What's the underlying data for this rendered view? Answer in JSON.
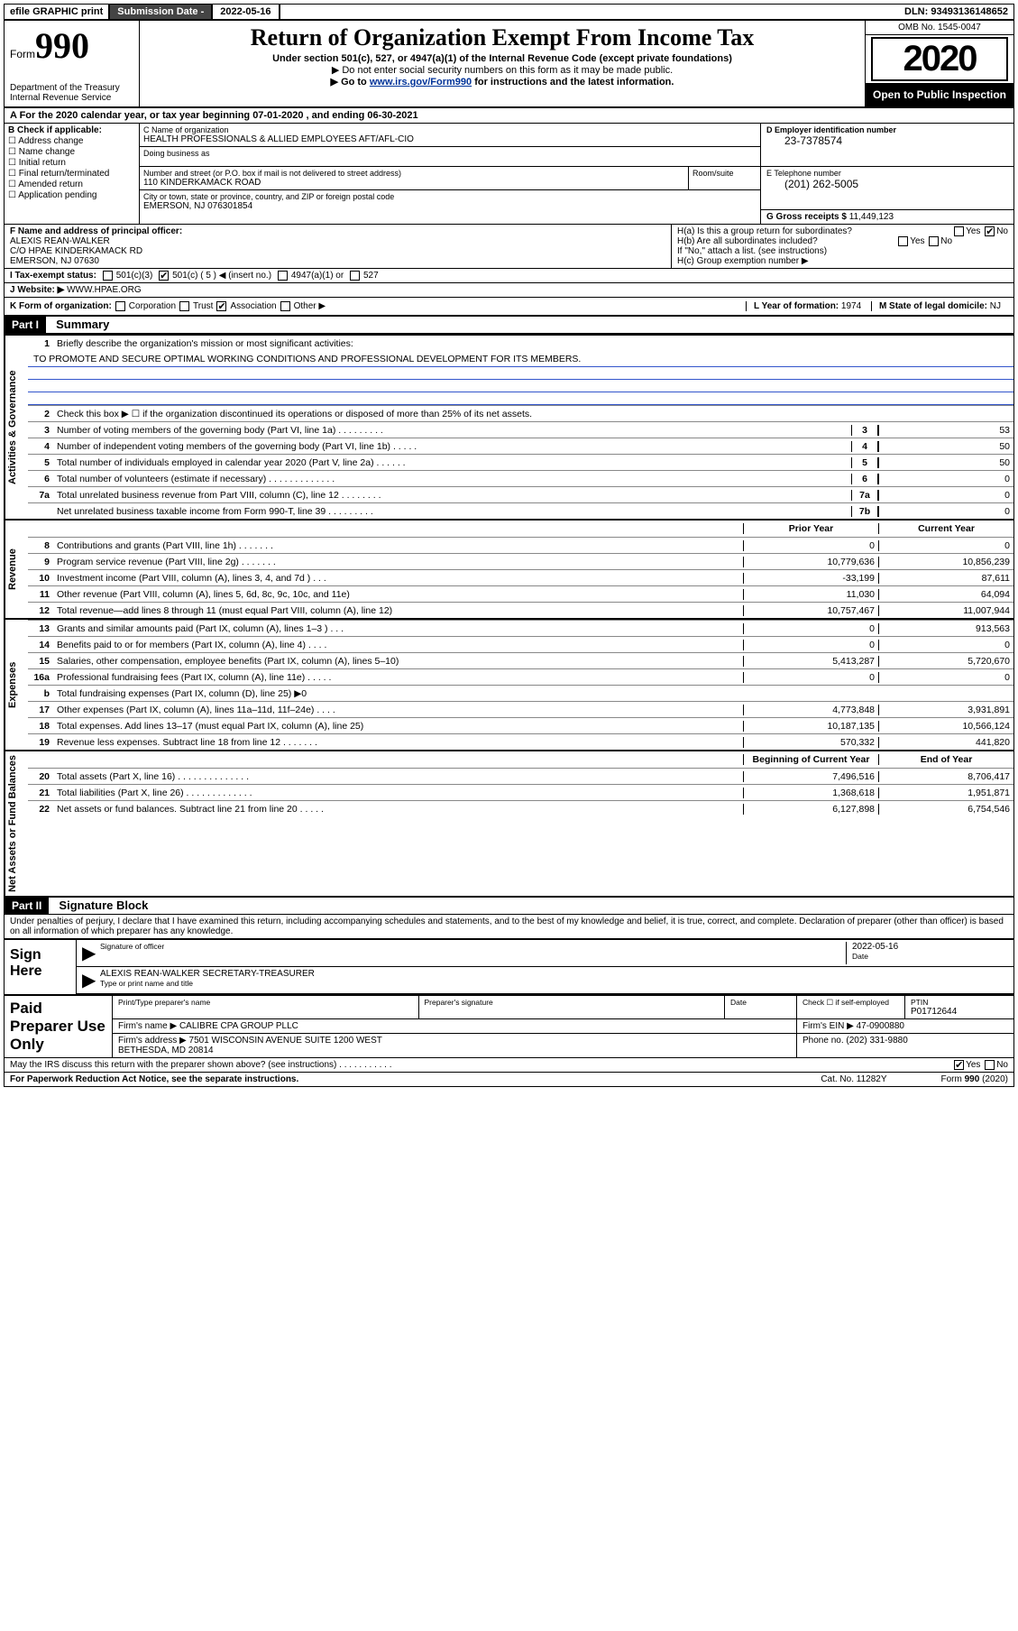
{
  "topbar": {
    "efile": "efile GRAPHIC print",
    "subdate_label": "Submission Date - ",
    "subdate": "2022-05-16",
    "dln_label": "DLN: ",
    "dln": "93493136148652"
  },
  "header": {
    "form_label": "Form",
    "form_num": "990",
    "dept": "Department of the Treasury\nInternal Revenue Service",
    "title": "Return of Organization Exempt From Income Tax",
    "subtitle": "Under section 501(c), 527, or 4947(a)(1) of the Internal Revenue Code (except private foundations)",
    "line2": "▶ Do not enter social security numbers on this form as it may be made public.",
    "line3_pre": "▶ Go to ",
    "line3_link": "www.irs.gov/Form990",
    "line3_post": " for instructions and the latest information.",
    "omb": "OMB No. 1545-0047",
    "year": "2020",
    "open": "Open to Public Inspection"
  },
  "rowA": "A For the 2020 calendar year, or tax year beginning 07-01-2020   , and ending 06-30-2021",
  "colB": {
    "label": "B Check if applicable:",
    "items": [
      "Address change",
      "Name change",
      "Initial return",
      "Final return/terminated",
      "Amended return",
      "Application pending"
    ]
  },
  "colC": {
    "name_label": "C Name of organization",
    "name": "HEALTH PROFESSIONALS & ALLIED EMPLOYEES AFT/AFL-CIO",
    "dba_label": "Doing business as",
    "addr_label": "Number and street (or P.O. box if mail is not delivered to street address)",
    "addr": "110 KINDERKAMACK ROAD",
    "room_label": "Room/suite",
    "city_label": "City or town, state or province, country, and ZIP or foreign postal code",
    "city": "EMERSON, NJ  076301854"
  },
  "colD": {
    "ein_label": "D Employer identification number",
    "ein": "23-7378574",
    "tel_label": "E Telephone number",
    "tel": "(201) 262-5005",
    "gross_label": "G Gross receipts $ ",
    "gross": "11,449,123"
  },
  "rowF": {
    "label": "F  Name and address of principal officer:",
    "name": "ALEXIS REAN-WALKER",
    "addr1": "C/O HPAE KINDERKAMACK RD",
    "addr2": "EMERSON, NJ  07630"
  },
  "rowH": {
    "a": "H(a)  Is this a group return for subordinates?",
    "b": "H(b)  Are all subordinates included?",
    "note": "If \"No,\" attach a list. (see instructions)",
    "c": "H(c)  Group exemption number ▶",
    "yes": "Yes",
    "no": "No"
  },
  "rowI": {
    "label": "I   Tax-exempt status:",
    "opts": [
      "501(c)(3)",
      "501(c) ( 5 ) ◀ (insert no.)",
      "4947(a)(1) or",
      "527"
    ],
    "checked_index": 1
  },
  "rowJ": {
    "label": "J   Website: ▶  ",
    "val": "WWW.HPAE.ORG"
  },
  "rowK": {
    "label": "K Form of organization:",
    "opts": [
      "Corporation",
      "Trust",
      "Association",
      "Other ▶"
    ],
    "checked_index": 2,
    "L_label": "L Year of formation: ",
    "L_val": "1974",
    "M_label": "M State of legal domicile: ",
    "M_val": "NJ"
  },
  "part1": {
    "hdr": "Part I",
    "title": "Summary",
    "q1": "Briefly describe the organization's mission or most significant activities:",
    "q1_ans": "TO PROMOTE AND SECURE OPTIMAL WORKING CONDITIONS AND PROFESSIONAL DEVELOPMENT FOR ITS MEMBERS.",
    "q2": "Check this box ▶ ☐  if the organization discontinued its operations or disposed of more than 25% of its net assets.",
    "sections": {
      "gov": "Activities & Governance",
      "rev": "Revenue",
      "exp": "Expenses",
      "net": "Net Assets or Fund Balances"
    },
    "col_prior": "Prior Year",
    "col_curr": "Current Year",
    "col_beg": "Beginning of Current Year",
    "col_end": "End of Year",
    "lines_gov": [
      {
        "n": "3",
        "d": "Number of voting members of the governing body (Part VI, line 1a)  .   .   .   .   .   .   .   .   .",
        "box": "3",
        "v": "53"
      },
      {
        "n": "4",
        "d": "Number of independent voting members of the governing body (Part VI, line 1b)  .   .   .   .   .",
        "box": "4",
        "v": "50"
      },
      {
        "n": "5",
        "d": "Total number of individuals employed in calendar year 2020 (Part V, line 2a)  .   .   .   .   .   .",
        "box": "5",
        "v": "50"
      },
      {
        "n": "6",
        "d": "Total number of volunteers (estimate if necessary)   .   .   .   .   .   .   .   .   .   .   .   .   .",
        "box": "6",
        "v": "0"
      },
      {
        "n": "7a",
        "d": "Total unrelated business revenue from Part VIII, column (C), line 12  .   .   .   .   .   .   .   .",
        "box": "7a",
        "v": "0"
      },
      {
        "n": "",
        "d": "Net unrelated business taxable income from Form 990-T, line 39   .   .   .   .   .   .   .   .   .",
        "box": "7b",
        "v": "0"
      }
    ],
    "lines_rev": [
      {
        "n": "8",
        "d": "Contributions and grants (Part VIII, line 1h)   .   .   .   .   .   .   .",
        "p": "0",
        "c": "0"
      },
      {
        "n": "9",
        "d": "Program service revenue (Part VIII, line 2g)   .   .   .   .   .   .   .",
        "p": "10,779,636",
        "c": "10,856,239"
      },
      {
        "n": "10",
        "d": "Investment income (Part VIII, column (A), lines 3, 4, and 7d )   .   .   .",
        "p": "-33,199",
        "c": "87,611"
      },
      {
        "n": "11",
        "d": "Other revenue (Part VIII, column (A), lines 5, 6d, 8c, 9c, 10c, and 11e)",
        "p": "11,030",
        "c": "64,094"
      },
      {
        "n": "12",
        "d": "Total revenue—add lines 8 through 11 (must equal Part VIII, column (A), line 12)",
        "p": "10,757,467",
        "c": "11,007,944"
      }
    ],
    "lines_exp": [
      {
        "n": "13",
        "d": "Grants and similar amounts paid (Part IX, column (A), lines 1–3 )   .   .   .",
        "p": "0",
        "c": "913,563"
      },
      {
        "n": "14",
        "d": "Benefits paid to or for members (Part IX, column (A), line 4)   .   .   .   .",
        "p": "0",
        "c": "0"
      },
      {
        "n": "15",
        "d": "Salaries, other compensation, employee benefits (Part IX, column (A), lines 5–10)",
        "p": "5,413,287",
        "c": "5,720,670"
      },
      {
        "n": "16a",
        "d": "Professional fundraising fees (Part IX, column (A), line 11e)   .   .   .   .   .",
        "p": "0",
        "c": "0"
      },
      {
        "n": "b",
        "d": "Total fundraising expenses (Part IX, column (D), line 25) ▶0",
        "p": "",
        "c": "",
        "shade": true
      },
      {
        "n": "17",
        "d": "Other expenses (Part IX, column (A), lines 11a–11d, 11f–24e)   .   .   .   .",
        "p": "4,773,848",
        "c": "3,931,891"
      },
      {
        "n": "18",
        "d": "Total expenses. Add lines 13–17 (must equal Part IX, column (A), line 25)",
        "p": "10,187,135",
        "c": "10,566,124"
      },
      {
        "n": "19",
        "d": "Revenue less expenses. Subtract line 18 from line 12   .   .   .   .   .   .   .",
        "p": "570,332",
        "c": "441,820"
      }
    ],
    "lines_net": [
      {
        "n": "20",
        "d": "Total assets (Part X, line 16)   .   .   .   .   .   .   .   .   .   .   .   .   .   .",
        "p": "7,496,516",
        "c": "8,706,417"
      },
      {
        "n": "21",
        "d": "Total liabilities (Part X, line 26)   .   .   .   .   .   .   .   .   .   .   .   .   .",
        "p": "1,368,618",
        "c": "1,951,871"
      },
      {
        "n": "22",
        "d": "Net assets or fund balances. Subtract line 21 from line 20   .   .   .   .   .",
        "p": "6,127,898",
        "c": "6,754,546"
      }
    ]
  },
  "part2": {
    "hdr": "Part II",
    "title": "Signature Block",
    "decl": "Under penalties of perjury, I declare that I have examined this return, including accompanying schedules and statements, and to the best of my knowledge and belief, it is true, correct, and complete. Declaration of preparer (other than officer) is based on all information of which preparer has any knowledge."
  },
  "sign": {
    "label": "Sign Here",
    "sig_label": "Signature of officer",
    "date_label": "Date",
    "date": "2022-05-16",
    "name": "ALEXIS REAN-WALKER  SECRETARY-TREASURER",
    "name_label": "Type or print name and title"
  },
  "prep": {
    "label": "Paid Preparer Use Only",
    "h1": "Print/Type preparer's name",
    "h2": "Preparer's signature",
    "h3": "Date",
    "h4_pre": "Check ☐ if self-employed",
    "h5": "PTIN",
    "ptin": "P01712644",
    "firm_label": "Firm's name    ▶ ",
    "firm": "CALIBRE CPA GROUP PLLC",
    "ein_label": "Firm's EIN ▶ ",
    "ein": "47-0900880",
    "addr_label": "Firm's address ▶ ",
    "addr": "7501 WISCONSIN AVENUE SUITE 1200 WEST\nBETHESDA, MD  20814",
    "phone_label": "Phone no. ",
    "phone": "(202) 331-9880",
    "discuss": "May the IRS discuss this return with the preparer shown above? (see instructions)   .   .   .   .   .   .   .   .   .   .   .",
    "yes": "Yes",
    "no": "No"
  },
  "footer": {
    "left": "For Paperwork Reduction Act Notice, see the separate instructions.",
    "mid": "Cat. No. 11282Y",
    "right": "Form 990 (2020)"
  }
}
